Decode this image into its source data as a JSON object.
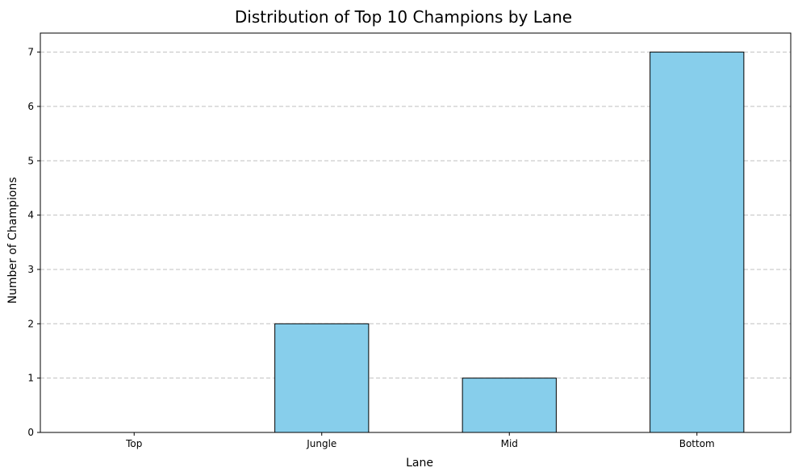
{
  "chart_data": {
    "type": "bar",
    "title": "Distribution of Top 10 Champions by Lane",
    "xlabel": "Lane",
    "ylabel": "Number of Champions",
    "categories": [
      "Top",
      "Jungle",
      "Mid",
      "Bottom"
    ],
    "values": [
      0,
      2,
      1,
      7
    ],
    "ylim": [
      0,
      7.35
    ],
    "yticks": [
      0,
      1,
      2,
      3,
      4,
      5,
      6,
      7
    ],
    "grid": "y-axis dashed",
    "legend": "none",
    "colors": {
      "bar_fill": "#87ceeb",
      "bar_edge": "#000000",
      "grid": "#c0c0c0"
    }
  }
}
